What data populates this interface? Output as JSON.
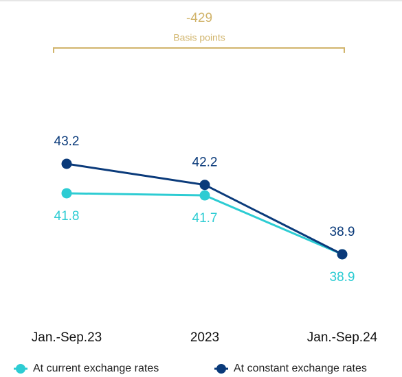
{
  "chart_data": {
    "type": "line",
    "annotation": {
      "value": "-429",
      "label": "Basis points",
      "color": "#d1b46b"
    },
    "categories": [
      "Jan.-Sep.23",
      "2023",
      "Jan.-Sep.24"
    ],
    "series": [
      {
        "name": "At current exchange rates",
        "color": "#2dccd3",
        "values": [
          41.8,
          41.7,
          38.9
        ]
      },
      {
        "name": "At constant exchange rates",
        "color": "#0a3a7a",
        "values": [
          43.2,
          42.2,
          38.9
        ]
      }
    ]
  }
}
